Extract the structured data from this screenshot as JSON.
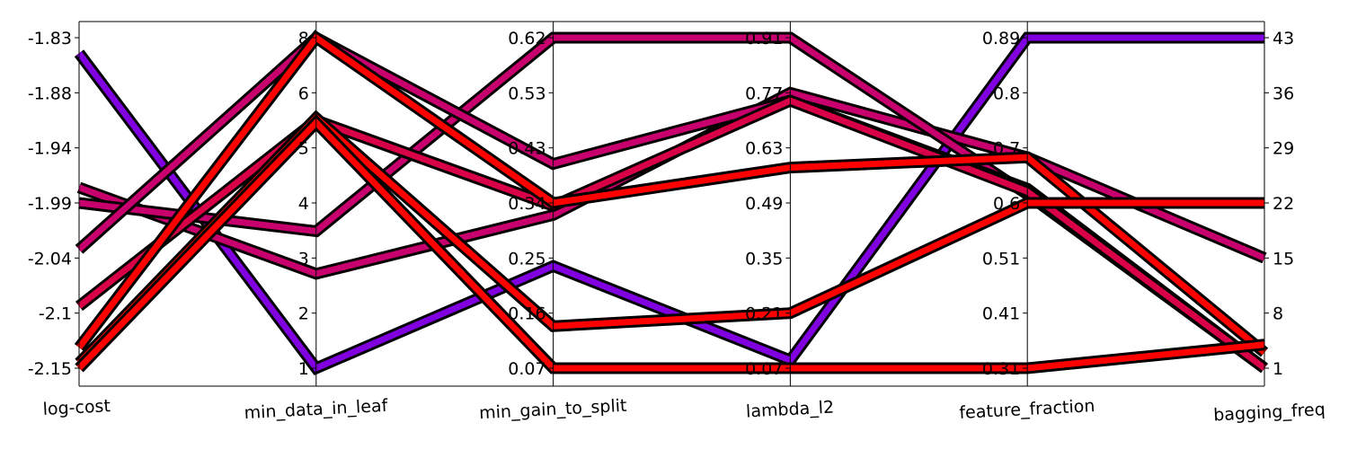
{
  "chart_data": {
    "type": "parallel_coordinates",
    "title": "",
    "axes": [
      {
        "name": "log-cost",
        "ticks": [
          "-1.83",
          "-1.88",
          "-1.94",
          "-1.99",
          "-2.04",
          "-2.1",
          "-2.15"
        ],
        "range": [
          -2.15,
          -1.83
        ]
      },
      {
        "name": "min_data_in_leaf",
        "ticks": [
          "8",
          "6",
          "5",
          "4",
          "3",
          "2",
          "1"
        ],
        "range": [
          1,
          8
        ]
      },
      {
        "name": "min_gain_to_split",
        "ticks": [
          "0.62",
          "0.53",
          "0.43",
          "0.34",
          "0.25",
          "0.16",
          "0.07"
        ],
        "range": [
          0.07,
          0.62
        ]
      },
      {
        "name": "lambda_l2",
        "ticks": [
          "0.91",
          "0.77",
          "0.63",
          "0.49",
          "0.35",
          "0.21",
          "0.07"
        ],
        "range": [
          0.07,
          0.91
        ]
      },
      {
        "name": "feature_fraction",
        "ticks": [
          "0.89",
          "0.8",
          "0.7",
          "0.6",
          "0.51",
          "0.41",
          "0.31"
        ],
        "range": [
          0.31,
          0.89
        ]
      },
      {
        "name": "bagging_freq",
        "ticks": [
          "43",
          "36",
          "29",
          "22",
          "15",
          "8",
          "1"
        ],
        "range": [
          1,
          43
        ]
      }
    ],
    "series": [
      {
        "color": "#8000e0",
        "values": [
          -1.845,
          1.0,
          0.24,
          0.09,
          0.89,
          43
        ]
      },
      {
        "color": "#c8006e",
        "values": [
          -1.975,
          3.0,
          0.325,
          0.77,
          0.68,
          15
        ]
      },
      {
        "color": "#c8006e",
        "values": [
          -1.99,
          3.9,
          0.62,
          0.91,
          0.615,
          1
        ]
      },
      {
        "color": "#c8006e",
        "values": [
          -2.035,
          8.0,
          0.41,
          0.75,
          0.625,
          1
        ]
      },
      {
        "color": "#d80046",
        "values": [
          -2.09,
          6.25,
          0.34,
          0.75,
          0.62,
          1
        ]
      },
      {
        "color": "#ff0000",
        "values": [
          -2.13,
          8.0,
          0.345,
          0.58,
          0.68,
          3
        ]
      },
      {
        "color": "#ff0000",
        "values": [
          -2.145,
          6.3,
          0.14,
          0.21,
          0.6,
          22
        ]
      },
      {
        "color": "#ff0000",
        "values": [
          -2.15,
          6.2,
          0.07,
          0.07,
          0.31,
          4
        ]
      }
    ]
  }
}
